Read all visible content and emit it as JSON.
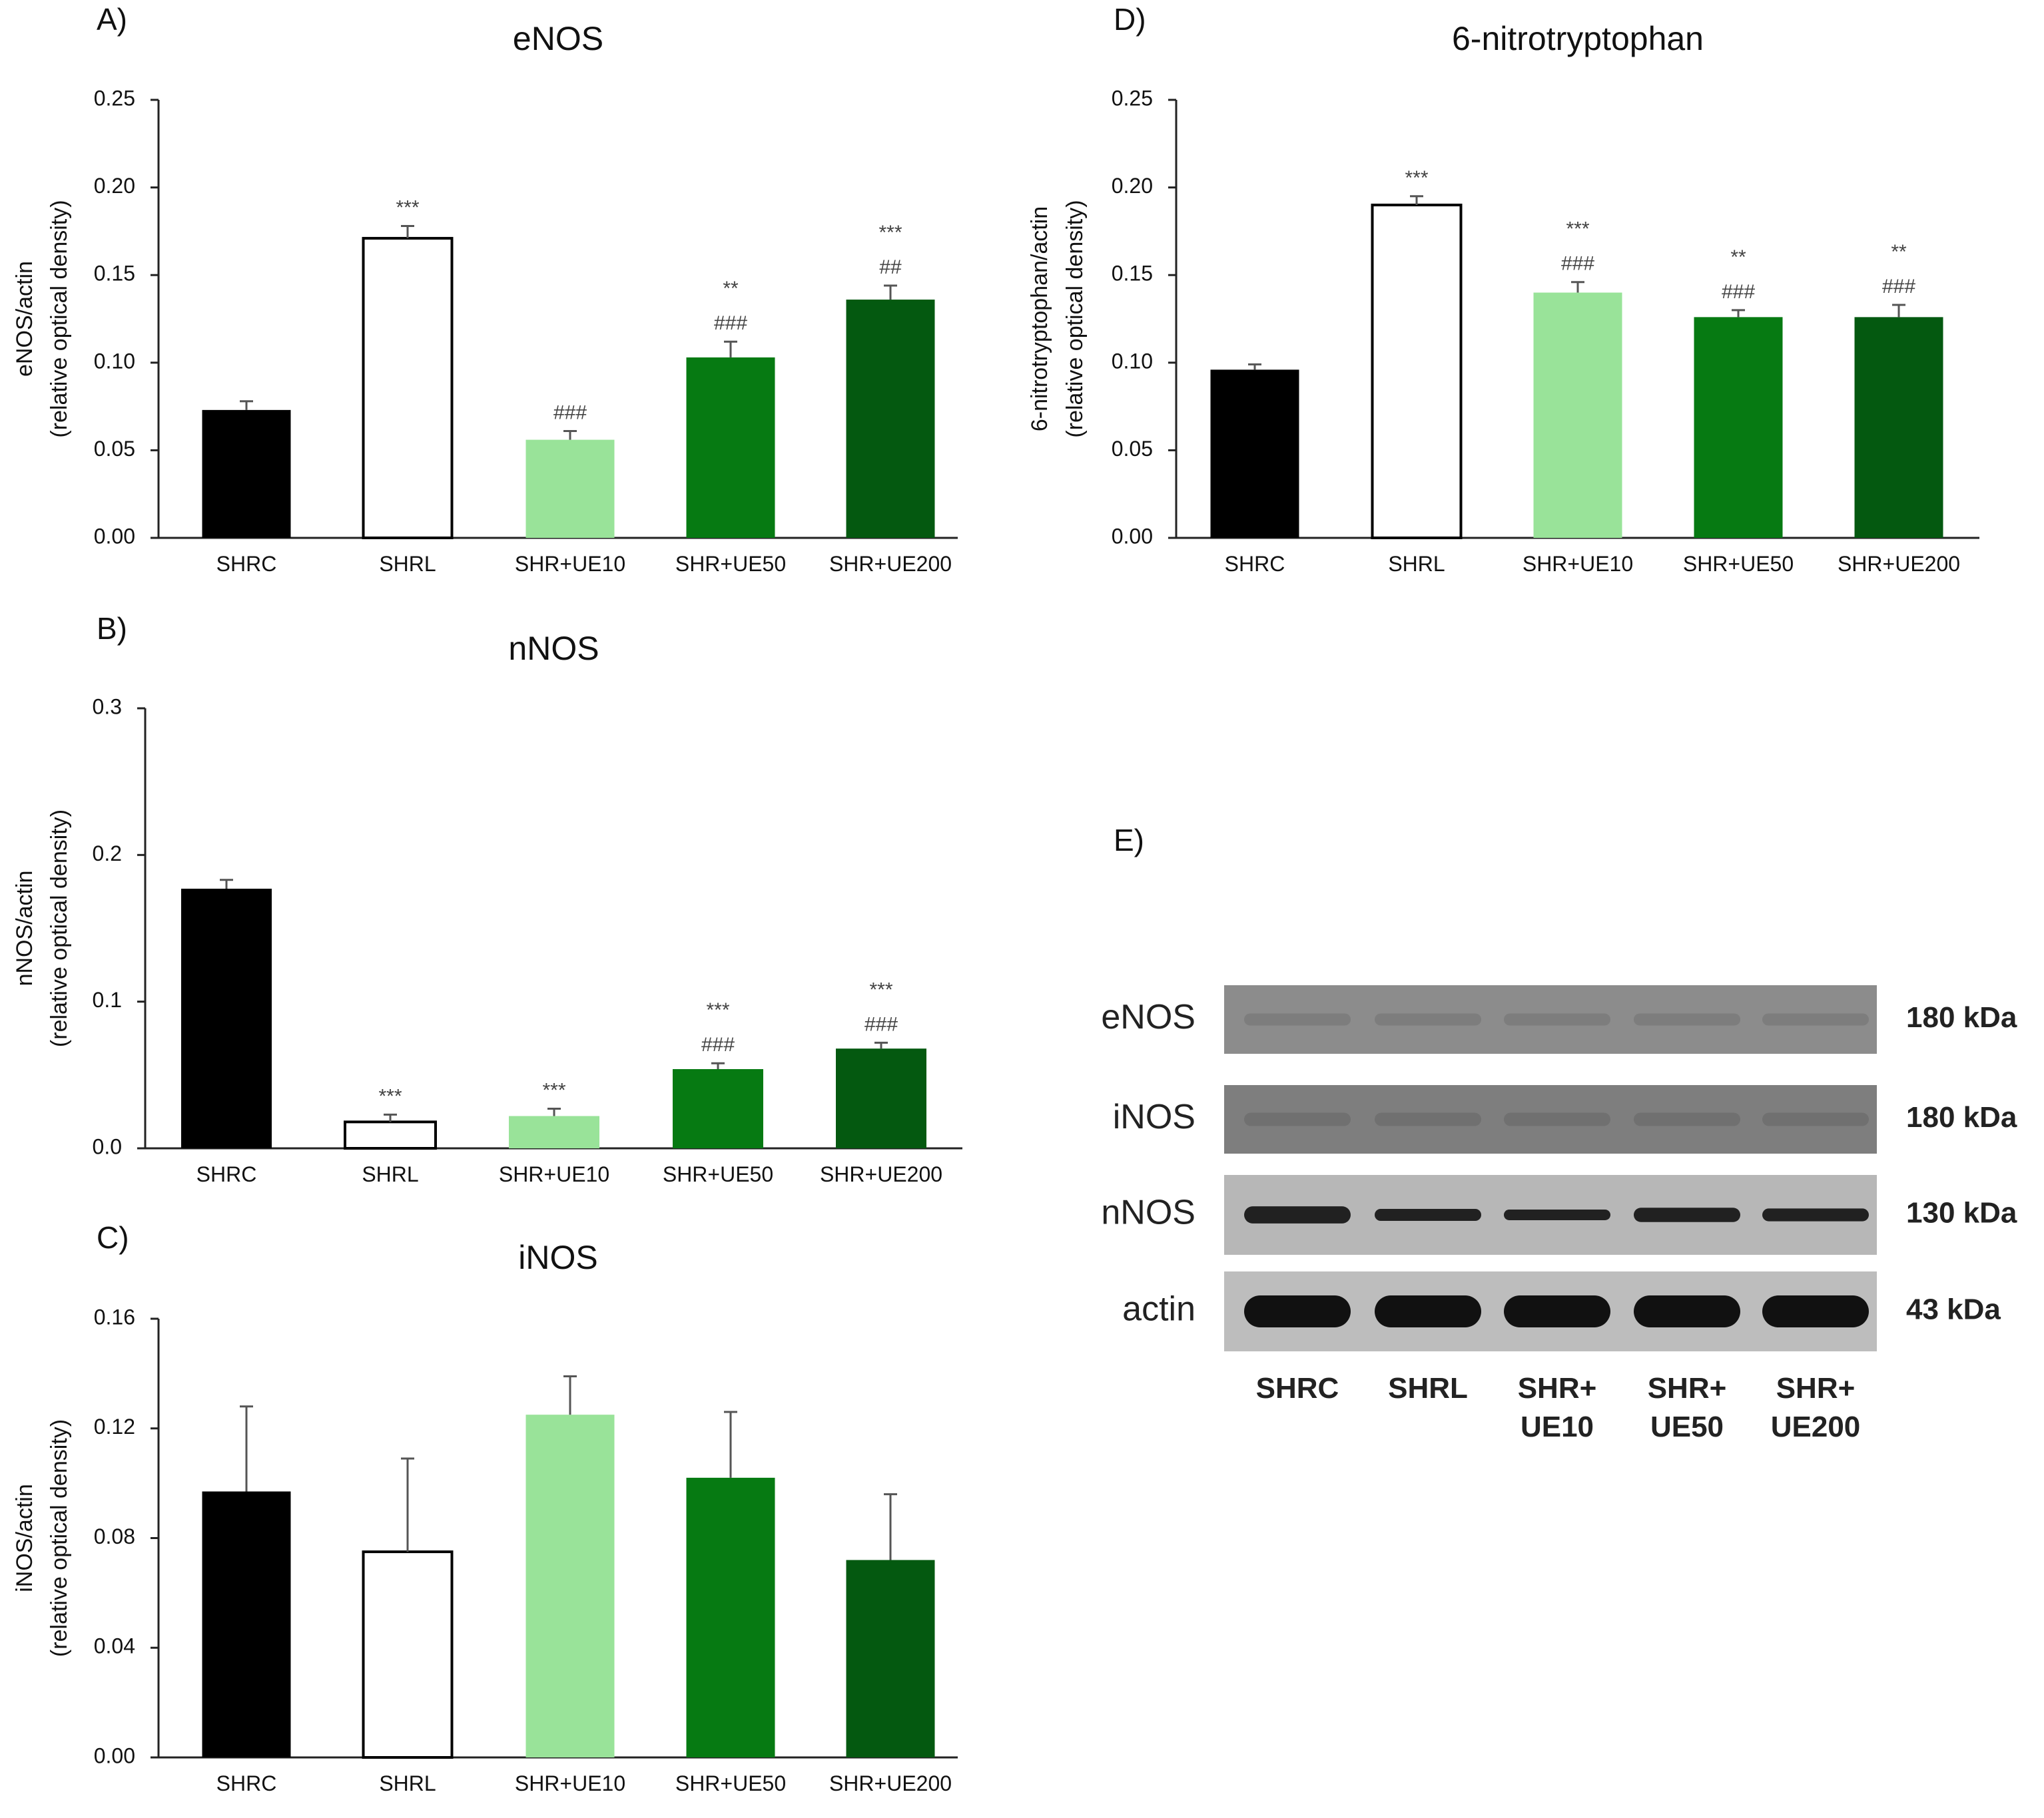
{
  "colors": {
    "SHRC": "#000000",
    "SHRL": "#ffffff",
    "SHR+UE10": "#99e399",
    "SHR+UE50": "#067a12",
    "SHR+UE200": "#045910",
    "axis": "#222222",
    "text": "#111111",
    "annotation": "#444444"
  },
  "chart_data": [
    {
      "panel_label": "A)",
      "type": "bar",
      "title": "eNOS",
      "ylabel_line1": "eNOS/actin",
      "ylabel_line2": "(relative optical density)",
      "ylim": [
        0,
        0.25
      ],
      "yticks": [
        "0.00",
        "0.05",
        "0.10",
        "0.15",
        "0.20",
        "0.25"
      ],
      "categories": [
        "SHRC",
        "SHRL",
        "SHR+UE10",
        "SHR+UE50",
        "SHR+UE200"
      ],
      "values": [
        0.073,
        0.171,
        0.056,
        0.103,
        0.136
      ],
      "errors": [
        0.005,
        0.007,
        0.005,
        0.009,
        0.008
      ],
      "annotations": [
        [],
        [
          "***"
        ],
        [
          "###"
        ],
        [
          "**",
          "###"
        ],
        [
          "***",
          "##"
        ]
      ]
    },
    {
      "panel_label": "B)",
      "type": "bar",
      "title": "nNOS",
      "ylabel_line1": "nNOS/actin",
      "ylabel_line2": "(relative optical density)",
      "ylim": [
        0,
        0.3
      ],
      "yticks": [
        "0.0",
        "0.1",
        "0.2",
        "0.3"
      ],
      "categories": [
        "SHRC",
        "SHRL",
        "SHR+UE10",
        "SHR+UE50",
        "SHR+UE200"
      ],
      "values": [
        0.177,
        0.018,
        0.022,
        0.054,
        0.068
      ],
      "errors": [
        0.006,
        0.005,
        0.005,
        0.004,
        0.004
      ],
      "annotations": [
        [],
        [
          "***"
        ],
        [
          "***"
        ],
        [
          "***",
          "###"
        ],
        [
          "***",
          "###"
        ]
      ]
    },
    {
      "panel_label": "C)",
      "type": "bar",
      "title": "iNOS",
      "ylabel_line1": "iNOS/actin",
      "ylabel_line2": "(relative optical density)",
      "ylim": [
        0,
        0.16
      ],
      "yticks": [
        "0.00",
        "0.04",
        "0.08",
        "0.12",
        "0.16"
      ],
      "categories": [
        "SHRC",
        "SHRL",
        "SHR+UE10",
        "SHR+UE50",
        "SHR+UE200"
      ],
      "values": [
        0.097,
        0.075,
        0.125,
        0.102,
        0.072
      ],
      "errors": [
        0.031,
        0.034,
        0.014,
        0.024,
        0.024
      ],
      "annotations": [
        [],
        [],
        [],
        [],
        []
      ]
    },
    {
      "panel_label": "D)",
      "type": "bar",
      "title": "6-nitrotryptophan",
      "ylabel_line1": "6-nitrotryptophan/actin",
      "ylabel_line2": "(relative optical density)",
      "ylim": [
        0,
        0.25
      ],
      "yticks": [
        "0.00",
        "0.05",
        "0.10",
        "0.15",
        "0.20",
        "0.25"
      ],
      "categories": [
        "SHRC",
        "SHRL",
        "SHR+UE10",
        "SHR+UE50",
        "SHR+UE200"
      ],
      "values": [
        0.096,
        0.19,
        0.14,
        0.126,
        0.126
      ],
      "errors": [
        0.003,
        0.005,
        0.006,
        0.004,
        0.007
      ],
      "annotations": [
        [],
        [
          "***"
        ],
        [
          "***",
          "###"
        ],
        [
          "**",
          "###"
        ],
        [
          "**",
          "###"
        ]
      ]
    }
  ],
  "blot": {
    "panel_label": "E)",
    "rows": [
      {
        "protein": "eNOS",
        "size": "180 kDa"
      },
      {
        "protein": "iNOS",
        "size": "180 kDa"
      },
      {
        "protein": "nNOS",
        "size": "130 kDa"
      },
      {
        "protein": "actin",
        "size": "43 kDa"
      }
    ],
    "lanes": [
      [
        "SHRC"
      ],
      [
        "SHRL"
      ],
      [
        "SHR+",
        "UE10"
      ],
      [
        "SHR+",
        "UE50"
      ],
      [
        "SHR+",
        "UE200"
      ]
    ]
  }
}
